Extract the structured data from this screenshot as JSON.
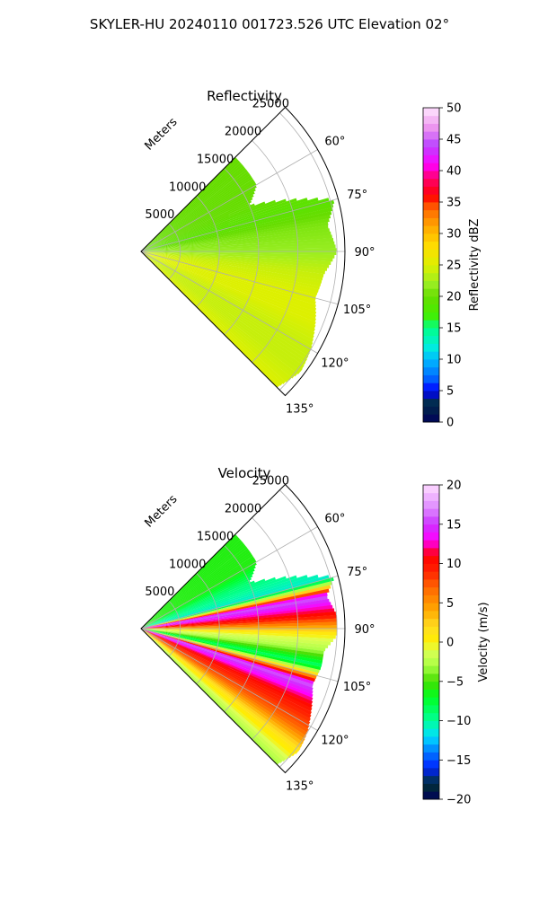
{
  "figure": {
    "title": "SKYLER-HU  20240110  001723.526 UTC Elevation 02°"
  },
  "chart_data": [
    {
      "type": "heatmap",
      "projection": "polar-sector",
      "title": "Reflectivity",
      "range_label": "Meters",
      "range_ticks": [
        5000,
        10000,
        15000,
        20000,
        25000
      ],
      "range_tick_labels": [
        "5000",
        "10000",
        "15000",
        "20000",
        "25000"
      ],
      "range_max": 26000,
      "azimuth_range_deg": [
        45,
        135
      ],
      "azimuth_ticks": [
        60,
        75,
        90,
        105,
        120,
        135
      ],
      "azimuth_tick_labels": [
        "60°",
        "75°",
        "90°",
        "105°",
        "120°",
        "135°"
      ],
      "grid": true,
      "colorbar": {
        "label": "Reflectivity dBZ",
        "min": 0,
        "max": 50,
        "ticks": [
          0,
          5,
          10,
          15,
          20,
          25,
          30,
          35,
          40,
          45,
          50
        ],
        "tick_labels": [
          "0",
          "5",
          "10",
          "15",
          "20",
          "25",
          "30",
          "35",
          "40",
          "45",
          "50"
        ],
        "colormap": "NWSRef"
      },
      "field_summary": [
        {
          "azimuth_deg": 60,
          "value": 20,
          "max_range_m": 17000
        },
        {
          "azimuth_deg": 67,
          "value": 20,
          "max_range_m": 15000
        },
        {
          "azimuth_deg": 75,
          "value": 19,
          "max_range_m": 25500
        },
        {
          "azimuth_deg": 82,
          "value": 21,
          "max_range_m": 24000
        },
        {
          "azimuth_deg": 90,
          "value": 22,
          "max_range_m": 25000
        },
        {
          "azimuth_deg": 97,
          "value": 24,
          "max_range_m": 23500
        },
        {
          "azimuth_deg": 105,
          "value": 25,
          "max_range_m": 23000
        },
        {
          "azimuth_deg": 112,
          "value": 25,
          "max_range_m": 24000
        },
        {
          "azimuth_deg": 120,
          "value": 24,
          "max_range_m": 25000
        },
        {
          "azimuth_deg": 127,
          "value": 24,
          "max_range_m": 25500
        },
        {
          "azimuth_deg": 135,
          "value": 25,
          "max_range_m": 24500
        }
      ]
    },
    {
      "type": "heatmap",
      "projection": "polar-sector",
      "title": "Velocity",
      "range_label": "Meters",
      "range_ticks": [
        5000,
        10000,
        15000,
        20000,
        25000
      ],
      "range_tick_labels": [
        "5000",
        "10000",
        "15000",
        "20000",
        "25000"
      ],
      "range_max": 26000,
      "azimuth_range_deg": [
        45,
        135
      ],
      "azimuth_ticks": [
        60,
        75,
        90,
        105,
        120,
        135
      ],
      "azimuth_tick_labels": [
        "60°",
        "75°",
        "90°",
        "105°",
        "120°",
        "135°"
      ],
      "grid": true,
      "colorbar": {
        "label": "Velocity (m/s)",
        "min": -20,
        "max": 20,
        "ticks": [
          -20,
          -15,
          -10,
          -5,
          0,
          5,
          10,
          15,
          20
        ],
        "tick_labels": [
          "−20",
          "−15",
          "−10",
          "−5",
          "0",
          "5",
          "10",
          "15",
          "20"
        ],
        "colormap": "NWSVel"
      },
      "field_summary": [
        {
          "azimuth_deg": 60,
          "value": -6,
          "max_range_m": 17000
        },
        {
          "azimuth_deg": 67,
          "value": -9,
          "max_range_m": 15000
        },
        {
          "azimuth_deg": 75,
          "value": -11,
          "max_range_m": 25500
        },
        {
          "azimuth_deg": 80,
          "value": 16,
          "max_range_m": 24000
        },
        {
          "azimuth_deg": 86,
          "value": 10,
          "max_range_m": 25000
        },
        {
          "azimuth_deg": 92,
          "value": 0,
          "max_range_m": 25000
        },
        {
          "azimuth_deg": 97,
          "value": -3,
          "max_range_m": 23500
        },
        {
          "azimuth_deg": 102,
          "value": -9,
          "max_range_m": 23500
        },
        {
          "azimuth_deg": 108,
          "value": 16,
          "max_range_m": 23000
        },
        {
          "azimuth_deg": 115,
          "value": 10,
          "max_range_m": 24000
        },
        {
          "azimuth_deg": 122,
          "value": 7,
          "max_range_m": 25000
        },
        {
          "azimuth_deg": 128,
          "value": 1,
          "max_range_m": 25500
        },
        {
          "azimuth_deg": 135,
          "value": -3,
          "max_range_m": 24500
        }
      ]
    }
  ]
}
